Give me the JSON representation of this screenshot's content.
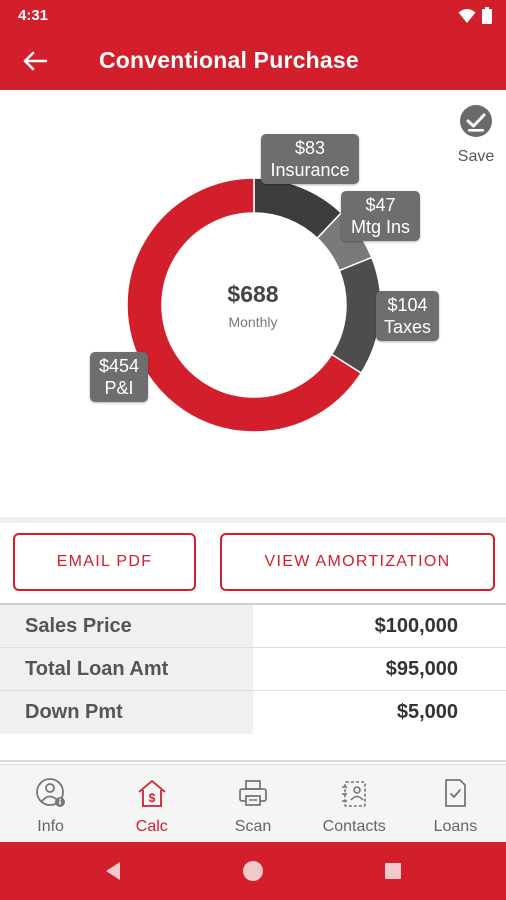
{
  "status_bar": {
    "time": "4:31"
  },
  "app_bar": {
    "title": "Conventional Purchase"
  },
  "save": {
    "label": "Save"
  },
  "donut": {
    "total": "$688",
    "label": "Monthly",
    "colors": {
      "pi": "#d21f2b",
      "insurance": "#3d3d3d",
      "mtg_ins": "#7a7a7a",
      "taxes": "#4d4d4d"
    }
  },
  "chart_data": {
    "type": "pie",
    "style": "donut",
    "center_value": "$688",
    "center_label": "Monthly",
    "slices": [
      {
        "name": "P&I",
        "value": 454,
        "label": "$454"
      },
      {
        "name": "Insurance",
        "value": 83,
        "label": "$83"
      },
      {
        "name": "Mtg Ins",
        "value": 47,
        "label": "$47"
      },
      {
        "name": "Taxes",
        "value": 104,
        "label": "$104"
      }
    ]
  },
  "bubbles": {
    "insurance": {
      "amount": "$83",
      "name": "Insurance"
    },
    "mtg_ins": {
      "amount": "$47",
      "name": "Mtg Ins"
    },
    "taxes": {
      "amount": "$104",
      "name": "Taxes"
    },
    "pi": {
      "amount": "$454",
      "name": "P&I"
    }
  },
  "buttons": {
    "email_pdf": "EMAIL PDF",
    "view_amortization": "VIEW AMORTIZATION"
  },
  "summary": [
    {
      "label": "Sales Price",
      "value": "$100,000"
    },
    {
      "label": "Total Loan Amt",
      "value": "$95,000"
    },
    {
      "label": "Down Pmt",
      "value": "$5,000"
    }
  ],
  "bottom_nav": [
    {
      "label": "Info",
      "icon": "info-person-icon",
      "active": false
    },
    {
      "label": "Calc",
      "icon": "house-dollar-icon",
      "active": true
    },
    {
      "label": "Scan",
      "icon": "printer-icon",
      "active": false
    },
    {
      "label": "Contacts",
      "icon": "contacts-icon",
      "active": false
    },
    {
      "label": "Loans",
      "icon": "document-check-icon",
      "active": false
    }
  ],
  "accent_color": "#d21f2b"
}
